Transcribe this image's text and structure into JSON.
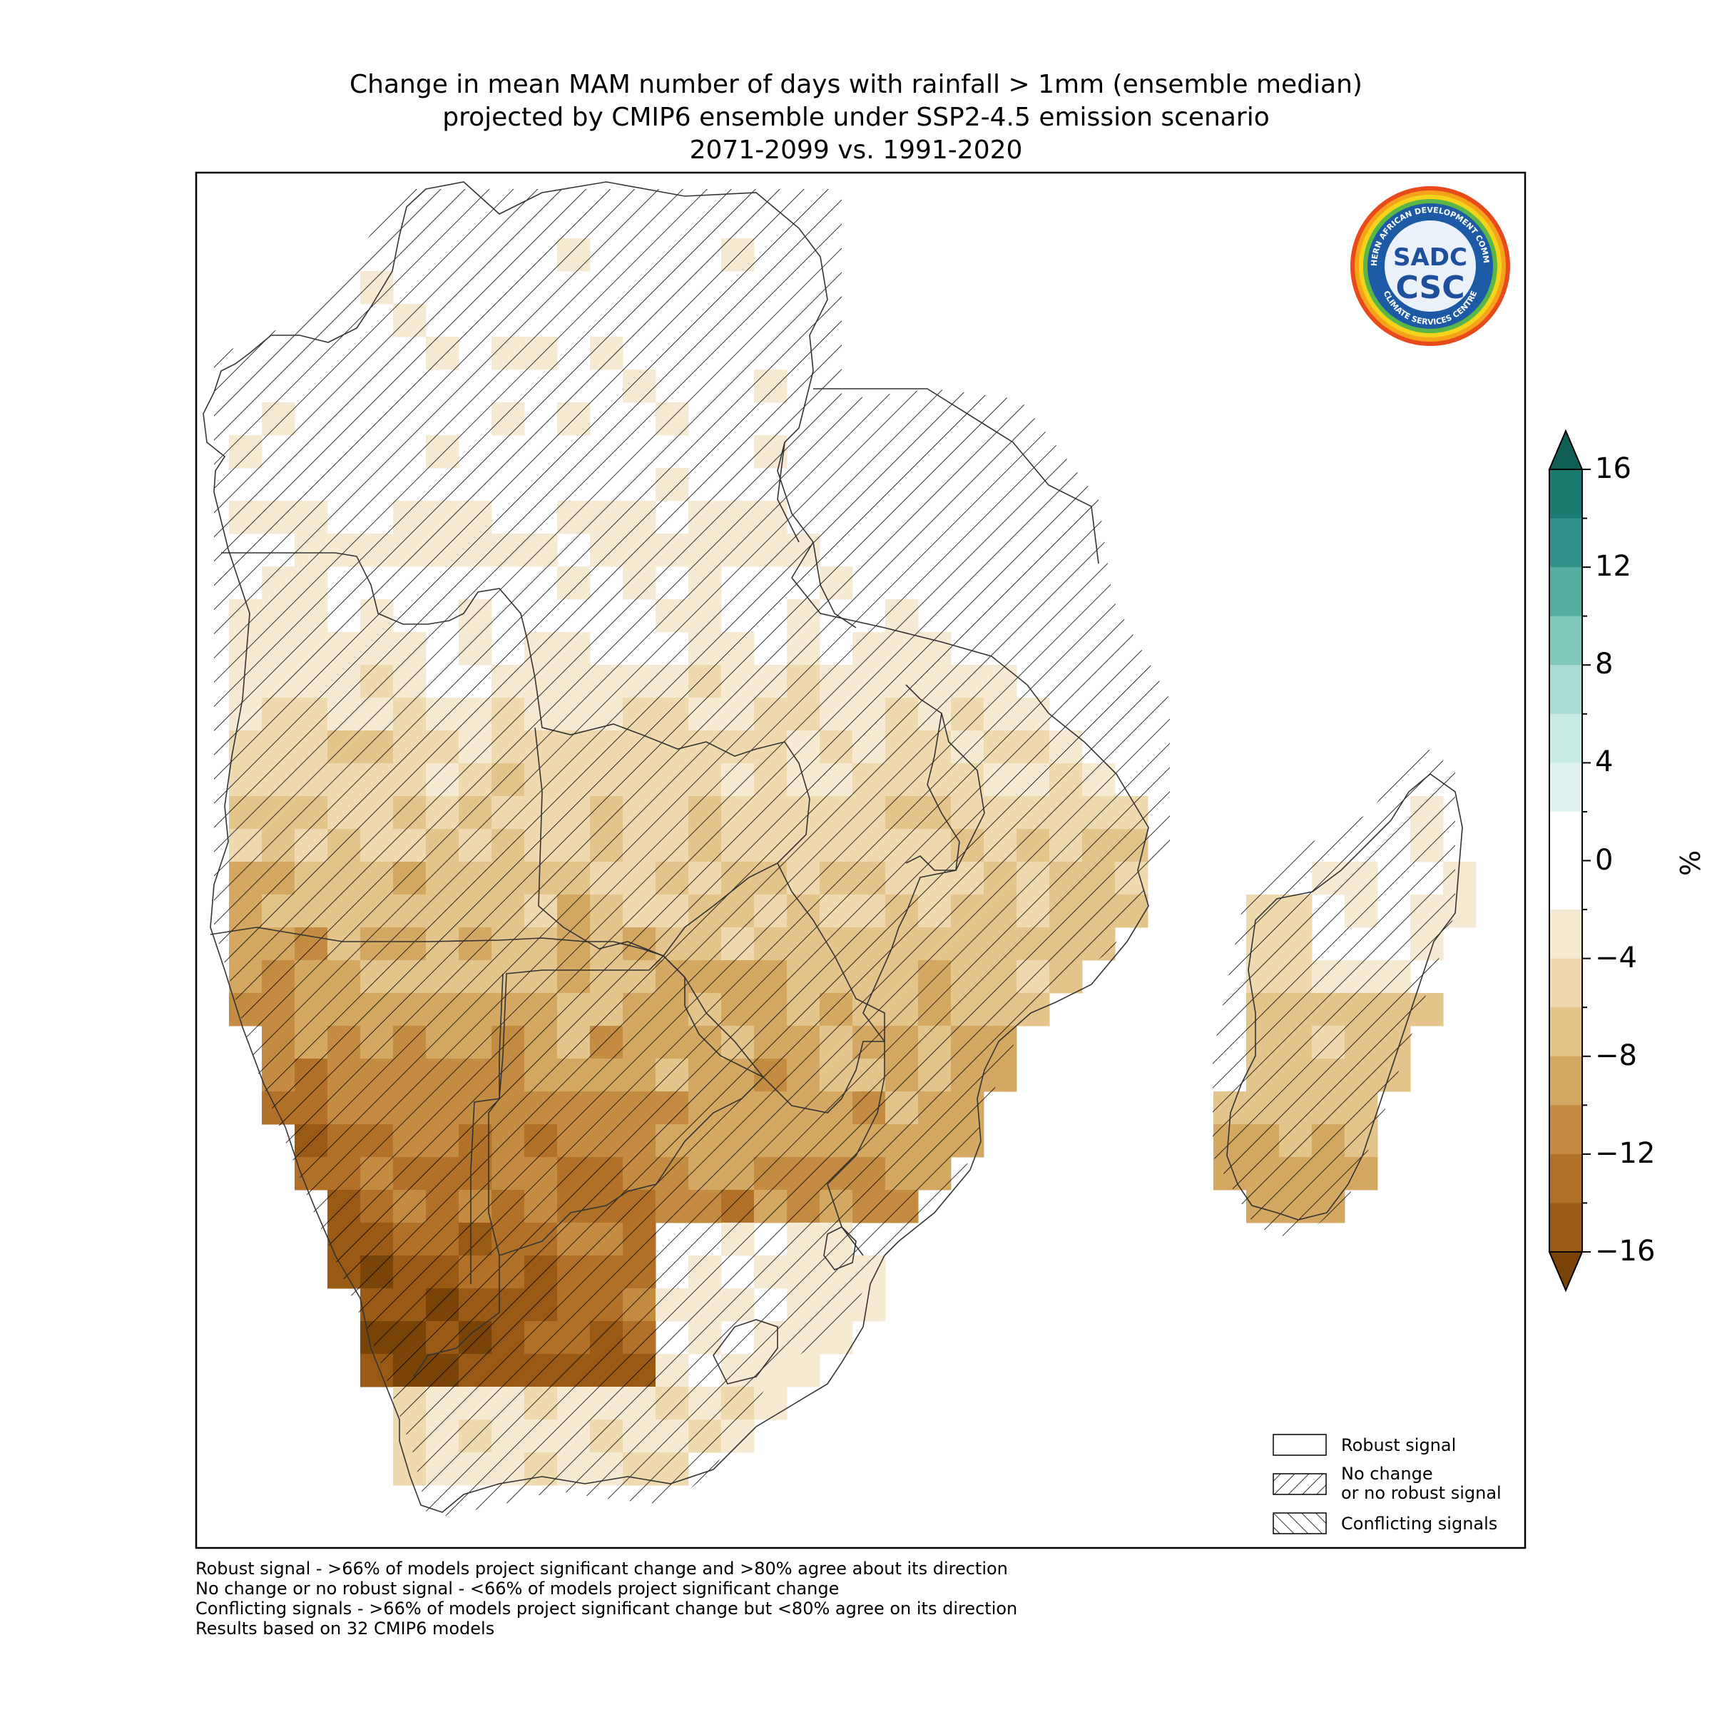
{
  "title": {
    "line1": "Change in mean MAM number of days with rainfall > 1mm (ensemble median)",
    "line2": "projected by CMIP6 ensemble under SSP2-4.5 emission scenario",
    "line3": "2071-2099 vs. 1991-2020"
  },
  "logo": {
    "ring_text": "SOUTHERN AFRICAN DEVELOPMENT COMMUNITY",
    "ring_text_bottom": "CLIMATE SERVICES CENTRE",
    "top": "SADC",
    "bottom": "CSC"
  },
  "colorbar": {
    "unit": "%",
    "min": -16,
    "max": 16,
    "tick_labels": [
      "16",
      "12",
      "8",
      "4",
      "0",
      "−4",
      "−8",
      "−12",
      "−16"
    ],
    "tick_values": [
      16,
      12,
      8,
      4,
      0,
      -4,
      -8,
      -12,
      -16
    ],
    "bins": [
      {
        "from": 14,
        "to": 16,
        "color": "#1a7a70"
      },
      {
        "from": 12,
        "to": 14,
        "color": "#33938a"
      },
      {
        "from": 10,
        "to": 12,
        "color": "#55aca1"
      },
      {
        "from": 8,
        "to": 10,
        "color": "#80c6bb"
      },
      {
        "from": 6,
        "to": 8,
        "color": "#a8dbd3"
      },
      {
        "from": 4,
        "to": 6,
        "color": "#c8eae5"
      },
      {
        "from": 2,
        "to": 4,
        "color": "#e1f3f0"
      },
      {
        "from": -2,
        "to": 2,
        "color": "#ffffff"
      },
      {
        "from": -4,
        "to": -2,
        "color": "#f7ead3"
      },
      {
        "from": -6,
        "to": -4,
        "color": "#efdab0"
      },
      {
        "from": -8,
        "to": -6,
        "color": "#e3c48a"
      },
      {
        "from": -10,
        "to": -8,
        "color": "#d4a863"
      },
      {
        "from": -12,
        "to": -10,
        "color": "#c48c42"
      },
      {
        "from": -14,
        "to": -12,
        "color": "#b17128"
      },
      {
        "from": -16,
        "to": -14,
        "color": "#985a15"
      }
    ],
    "extend_max_color": "#0f5f56",
    "extend_min_color": "#7a4408"
  },
  "legend": {
    "robust": "Robust signal",
    "no_change_1": "No change",
    "no_change_2": "or no robust signal",
    "conflicting": "Conflicting signals"
  },
  "footnotes": {
    "line1": "Robust signal - >66% of models project significant change and >80% agree about its direction",
    "line2": "No change or no robust signal - <66% of models project significant change",
    "line3": "Conflicting signals - >66% of models project significant change but <80% agree on its direction",
    "line4": "Results based on 32 CMIP6 models"
  },
  "chart_data": {
    "type": "heatmap",
    "region": "Southern Africa (SADC) incl. Madagascar",
    "variable": "Change in mean MAM number of days with rainfall > 1mm",
    "units": "%",
    "value_range": [
      -16,
      16
    ],
    "hatched_category": "No change or no robust signal"
  }
}
